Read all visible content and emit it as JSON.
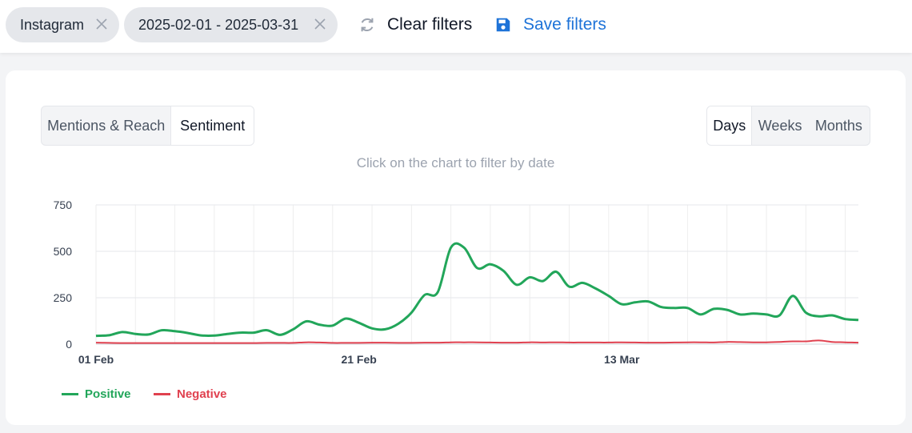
{
  "filters": {
    "chips": [
      {
        "label": "Instagram"
      },
      {
        "label": "2025-02-01 - 2025-03-31"
      }
    ],
    "clear_label": "Clear filters",
    "save_label": "Save filters",
    "icons": {
      "clear": "refresh-icon",
      "save": "save-icon",
      "remove": "close-icon"
    }
  },
  "tabs": {
    "metric": [
      {
        "label": "Mentions & Reach",
        "active": false
      },
      {
        "label": "Sentiment",
        "active": true
      }
    ],
    "period": [
      {
        "label": "Days",
        "active": true
      },
      {
        "label": "Weeks",
        "active": false
      },
      {
        "label": "Months",
        "active": false
      }
    ]
  },
  "hint": "Click on the chart to filter by date",
  "legend": [
    {
      "label": "Positive",
      "color": "#22a65a"
    },
    {
      "label": "Negative",
      "color": "#e0414f"
    }
  ],
  "chart_data": {
    "type": "line",
    "title": "",
    "xlabel": "",
    "ylabel": "",
    "ylim": [
      0,
      750
    ],
    "yticks": [
      0,
      250,
      500,
      750
    ],
    "xtick_labels": [
      {
        "index": 0,
        "label": "01 Feb"
      },
      {
        "index": 20,
        "label": "21 Feb"
      },
      {
        "index": 40,
        "label": "13 Mar"
      }
    ],
    "grid": true,
    "legend_position": "bottom-left",
    "x": [
      "2025-02-01",
      "2025-02-02",
      "2025-02-03",
      "2025-02-04",
      "2025-02-05",
      "2025-02-06",
      "2025-02-07",
      "2025-02-08",
      "2025-02-09",
      "2025-02-10",
      "2025-02-11",
      "2025-02-12",
      "2025-02-13",
      "2025-02-14",
      "2025-02-15",
      "2025-02-16",
      "2025-02-17",
      "2025-02-18",
      "2025-02-19",
      "2025-02-20",
      "2025-02-21",
      "2025-02-22",
      "2025-02-23",
      "2025-02-24",
      "2025-02-25",
      "2025-02-26",
      "2025-02-27",
      "2025-02-28",
      "2025-03-01",
      "2025-03-02",
      "2025-03-03",
      "2025-03-04",
      "2025-03-05",
      "2025-03-06",
      "2025-03-07",
      "2025-03-08",
      "2025-03-09",
      "2025-03-10",
      "2025-03-11",
      "2025-03-12",
      "2025-03-13",
      "2025-03-14",
      "2025-03-15",
      "2025-03-16",
      "2025-03-17",
      "2025-03-18",
      "2025-03-19",
      "2025-03-20",
      "2025-03-21",
      "2025-03-22",
      "2025-03-23",
      "2025-03-24",
      "2025-03-25",
      "2025-03-26",
      "2025-03-27",
      "2025-03-28",
      "2025-03-29",
      "2025-03-30",
      "2025-03-31"
    ],
    "series": [
      {
        "name": "Positive",
        "color": "#22a65a",
        "values": [
          45,
          48,
          65,
          55,
          52,
          75,
          70,
          60,
          47,
          46,
          55,
          62,
          62,
          75,
          50,
          80,
          123,
          105,
          100,
          138,
          115,
          85,
          80,
          110,
          170,
          265,
          280,
          520,
          520,
          410,
          430,
          395,
          320,
          360,
          340,
          390,
          310,
          330,
          300,
          260,
          215,
          225,
          230,
          200,
          195,
          195,
          160,
          190,
          185,
          160,
          165,
          160,
          155,
          260,
          170,
          150,
          155,
          135,
          130
        ]
      },
      {
        "name": "Negative",
        "color": "#e0414f",
        "values": [
          8,
          7,
          6,
          6,
          6,
          6,
          6,
          6,
          6,
          6,
          6,
          6,
          6,
          7,
          7,
          7,
          10,
          9,
          7,
          7,
          7,
          8,
          8,
          7,
          7,
          8,
          8,
          10,
          10,
          10,
          9,
          8,
          8,
          10,
          9,
          10,
          9,
          9,
          9,
          9,
          10,
          9,
          8,
          8,
          9,
          10,
          10,
          9,
          12,
          11,
          10,
          10,
          12,
          15,
          15,
          20,
          12,
          10,
          8
        ]
      }
    ]
  }
}
